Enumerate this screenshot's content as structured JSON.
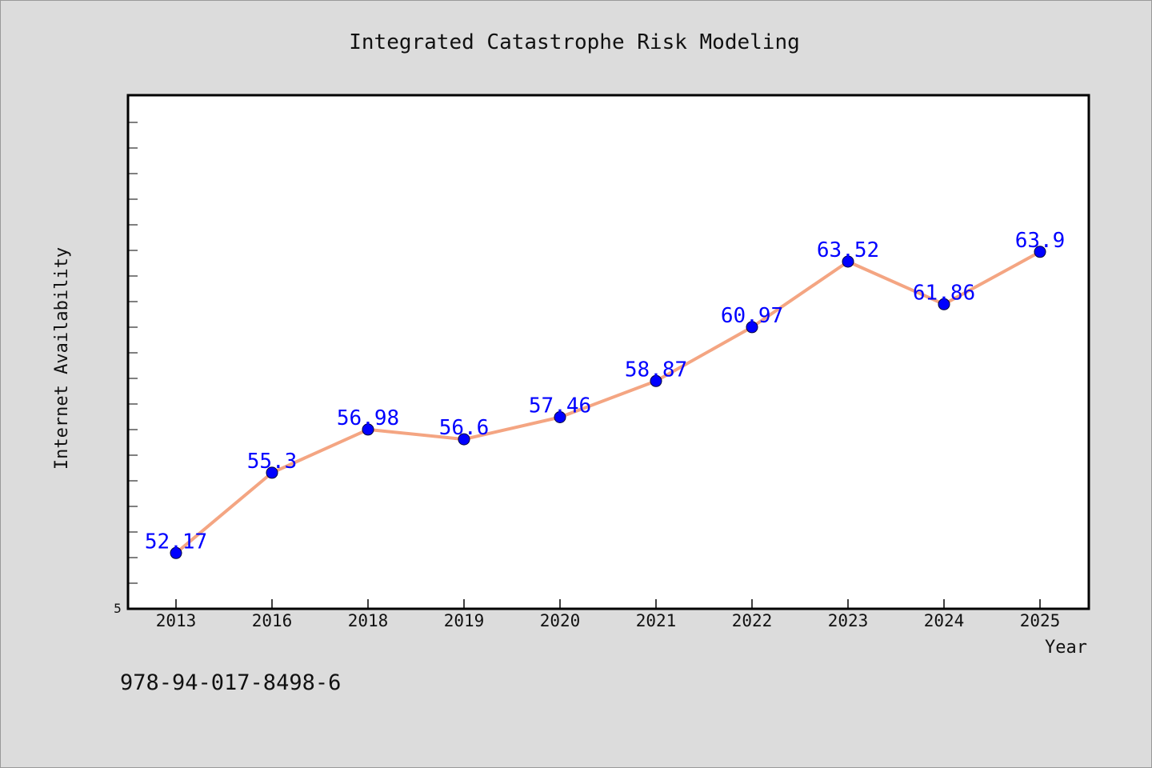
{
  "chart_data": {
    "type": "line",
    "title": "Integrated Catastrophe Risk Modeling",
    "xlabel": "Year",
    "ylabel": "Internet Availability",
    "categories": [
      "2013",
      "2016",
      "2018",
      "2019",
      "2020",
      "2021",
      "2022",
      "2023",
      "2024",
      "2025"
    ],
    "series": [
      {
        "name": "",
        "values": [
          52.17,
          55.3,
          56.98,
          56.6,
          57.46,
          58.87,
          60.97,
          63.52,
          61.86,
          63.9
        ]
      }
    ],
    "data_labels": [
      "52.17",
      "55.3",
      "56.98",
      "56.6",
      "57.46",
      "58.87",
      "60.97",
      "63.52",
      "61.86",
      "63.9"
    ],
    "y_tick_labels": [
      "5"
    ],
    "ylim": [
      50,
      70
    ],
    "grid": false,
    "legend": "none",
    "line_color": "#f4a582",
    "marker_color": "#0000ff",
    "label_color": "#0000ff"
  },
  "footnote": "978-94-017-8498-6"
}
